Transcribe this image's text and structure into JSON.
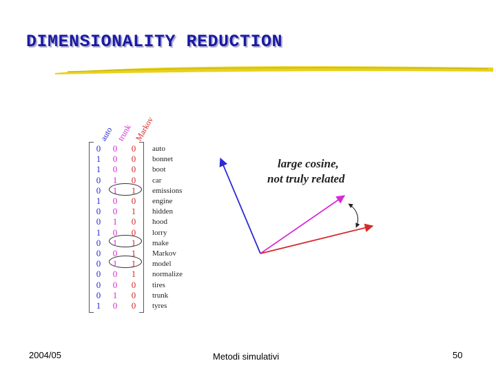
{
  "slide": {
    "title": "DIMENSIONALITY REDUCTION",
    "footer_left": "2004/05",
    "footer_center": "Metodi simulativi",
    "footer_right": "50"
  },
  "matrix": {
    "headers": [
      "auto",
      "trunk",
      "Markov"
    ],
    "terms": [
      "auto",
      "bonnet",
      "boot",
      "car",
      "emissions",
      "engine",
      "hidden",
      "hood",
      "lorry",
      "make",
      "Markov",
      "model",
      "normalize",
      "tires",
      "trunk",
      "tyres"
    ],
    "auto": [
      "0",
      "1",
      "1",
      "0",
      "0",
      "1",
      "0",
      "0",
      "1",
      "0",
      "0",
      "0",
      "0",
      "0",
      "0",
      "1"
    ],
    "trunk": [
      "0",
      "0",
      "0",
      "1",
      "1",
      "0",
      "0",
      "1",
      "0",
      "1",
      "0",
      "1",
      "0",
      "0",
      "1",
      "0"
    ],
    "markov": [
      "0",
      "0",
      "0",
      "0",
      "1",
      "0",
      "1",
      "0",
      "0",
      "1",
      "1",
      "1",
      "1",
      "0",
      "0",
      "0"
    ],
    "colors": {
      "auto": "#2a2ad6",
      "trunk": "#d62ad6",
      "markov": "#d62a2a"
    }
  },
  "annotation": {
    "line1": "large  cosine,",
    "line2": "not truly related"
  },
  "vectors": {
    "colors": {
      "blue": "#2a2ad6",
      "magenta": "#d62ad6",
      "red": "#d62a2a"
    }
  }
}
